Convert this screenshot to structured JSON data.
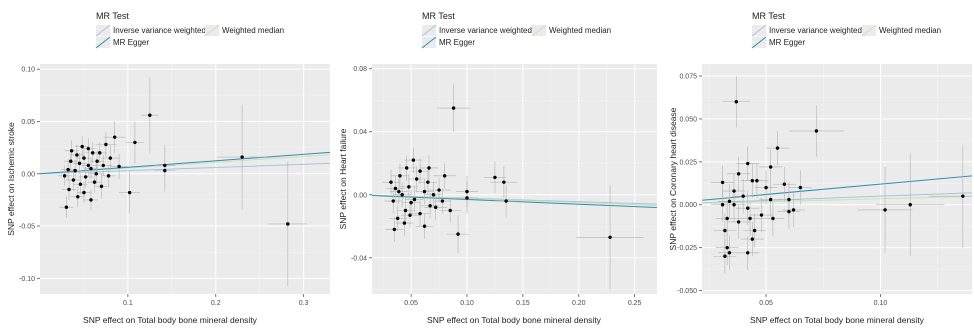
{
  "figure": {
    "legend": {
      "title": "MR Test",
      "items": [
        {
          "label": "Inverse variance weighted",
          "color": "#a6c4e3"
        },
        {
          "label": "Weighted median",
          "color": "#c9e3b8"
        },
        {
          "label": "MR Egger",
          "color": "#2f8fb0"
        }
      ]
    }
  },
  "chart_data": [
    {
      "type": "scatter",
      "title": "",
      "xlabel": "SNP effect on Total body bone mineral density",
      "ylabel": "SNP effect on Ischemic stroke",
      "xlim": [
        0,
        0.33
      ],
      "ylim": [
        -0.115,
        0.105
      ],
      "xticks": [
        0.1,
        0.2,
        0.3
      ],
      "xtick_labels": [
        "0.1",
        "0.2",
        "0.3"
      ],
      "yticks": [
        -0.1,
        -0.05,
        0.0,
        0.05,
        0.1
      ],
      "ytick_labels": [
        "-0.10",
        "-0.05",
        "0.00",
        "0.05",
        "0.10"
      ],
      "grid": true,
      "lines": [
        {
          "name": "Inverse variance weighted",
          "slope": 0.03,
          "intercept": 0,
          "color": "#a6c4e3"
        },
        {
          "name": "Weighted median",
          "slope": 0.055,
          "intercept": 0,
          "color": "#c9e3b8"
        },
        {
          "name": "MR Egger",
          "slope": 0.062,
          "intercept": 0,
          "color": "#2f8fb0"
        }
      ],
      "points": [
        {
          "x": 0.125,
          "y": 0.056,
          "xerr": 0.01,
          "yerr": 0.036
        },
        {
          "x": 0.23,
          "y": 0.016,
          "xerr": 0.028,
          "yerr": 0.05
        },
        {
          "x": 0.282,
          "y": -0.048,
          "xerr": 0.022,
          "yerr": 0.06
        },
        {
          "x": 0.108,
          "y": 0.03,
          "xerr": 0.01,
          "yerr": 0.02
        },
        {
          "x": 0.102,
          "y": -0.018,
          "xerr": 0.012,
          "yerr": 0.02
        },
        {
          "x": 0.142,
          "y": 0.008,
          "xerr": 0.012,
          "yerr": 0.02
        },
        {
          "x": 0.142,
          "y": 0.003,
          "xerr": 0.012,
          "yerr": 0.02
        },
        {
          "x": 0.085,
          "y": 0.035,
          "xerr": 0.012,
          "yerr": 0.015
        },
        {
          "x": 0.075,
          "y": 0.028,
          "xerr": 0.012,
          "yerr": 0.012
        },
        {
          "x": 0.08,
          "y": 0.015,
          "xerr": 0.01,
          "yerr": 0.012
        },
        {
          "x": 0.072,
          "y": 0.008,
          "xerr": 0.01,
          "yerr": 0.01
        },
        {
          "x": 0.09,
          "y": 0.007,
          "xerr": 0.01,
          "yerr": 0.012
        },
        {
          "x": 0.06,
          "y": 0.02,
          "xerr": 0.008,
          "yerr": 0.01
        },
        {
          "x": 0.055,
          "y": 0.024,
          "xerr": 0.008,
          "yerr": 0.01
        },
        {
          "x": 0.048,
          "y": 0.026,
          "xerr": 0.008,
          "yerr": 0.01
        },
        {
          "x": 0.065,
          "y": 0.012,
          "xerr": 0.008,
          "yerr": 0.01
        },
        {
          "x": 0.058,
          "y": 0.005,
          "xerr": 0.008,
          "yerr": 0.01
        },
        {
          "x": 0.052,
          "y": -0.003,
          "xerr": 0.008,
          "yerr": 0.01
        },
        {
          "x": 0.062,
          "y": -0.008,
          "xerr": 0.008,
          "yerr": 0.01
        },
        {
          "x": 0.07,
          "y": -0.012,
          "xerr": 0.008,
          "yerr": 0.012
        },
        {
          "x": 0.045,
          "y": 0.01,
          "xerr": 0.008,
          "yerr": 0.01
        },
        {
          "x": 0.042,
          "y": 0.018,
          "xerr": 0.008,
          "yerr": 0.01
        },
        {
          "x": 0.04,
          "y": 0.003,
          "xerr": 0.008,
          "yerr": 0.01
        },
        {
          "x": 0.038,
          "y": -0.006,
          "xerr": 0.008,
          "yerr": 0.01
        },
        {
          "x": 0.035,
          "y": 0.012,
          "xerr": 0.008,
          "yerr": 0.01
        },
        {
          "x": 0.033,
          "y": -0.015,
          "xerr": 0.008,
          "yerr": 0.01
        },
        {
          "x": 0.03,
          "y": -0.032,
          "xerr": 0.008,
          "yerr": 0.01
        },
        {
          "x": 0.032,
          "y": 0.004,
          "xerr": 0.008,
          "yerr": 0.01
        },
        {
          "x": 0.028,
          "y": -0.002,
          "xerr": 0.008,
          "yerr": 0.01
        },
        {
          "x": 0.05,
          "y": 0.015,
          "xerr": 0.008,
          "yerr": 0.01
        },
        {
          "x": 0.05,
          "y": -0.018,
          "xerr": 0.008,
          "yerr": 0.01
        },
        {
          "x": 0.046,
          "y": -0.01,
          "xerr": 0.008,
          "yerr": 0.01
        },
        {
          "x": 0.055,
          "y": 0.008,
          "xerr": 0.008,
          "yerr": 0.01
        },
        {
          "x": 0.068,
          "y": 0.02,
          "xerr": 0.008,
          "yerr": 0.01
        },
        {
          "x": 0.078,
          "y": -0.002,
          "xerr": 0.008,
          "yerr": 0.01
        },
        {
          "x": 0.043,
          "y": -0.022,
          "xerr": 0.008,
          "yerr": 0.01
        },
        {
          "x": 0.058,
          "y": -0.025,
          "xerr": 0.008,
          "yerr": 0.01
        },
        {
          "x": 0.036,
          "y": 0.022,
          "xerr": 0.008,
          "yerr": 0.01
        },
        {
          "x": 0.064,
          "y": 0.0,
          "xerr": 0.008,
          "yerr": 0.01
        }
      ]
    },
    {
      "type": "scatter",
      "title": "",
      "xlabel": "SNP effect on Total body bone mineral density",
      "ylabel": "SNP effect on Heart failure",
      "xlim": [
        0.015,
        0.27
      ],
      "ylim": [
        -0.063,
        0.083
      ],
      "xticks": [
        0.05,
        0.1,
        0.15,
        0.2,
        0.25
      ],
      "xtick_labels": [
        "0.05",
        "0.10",
        "0.15",
        "0.20",
        "0.25"
      ],
      "yticks": [
        -0.04,
        0.0,
        0.04,
        0.08
      ],
      "ytick_labels": [
        "-0.04",
        "0.00",
        "0.04",
        "0.08"
      ],
      "grid": true,
      "lines": [
        {
          "name": "Inverse variance weighted",
          "slope": -0.022,
          "intercept": 0,
          "color": "#a6c4e3"
        },
        {
          "name": "Weighted median",
          "slope": -0.025,
          "intercept": 0,
          "color": "#c9e3b8"
        },
        {
          "name": "MR Egger",
          "slope": -0.03,
          "intercept": 0,
          "color": "#2f8fb0"
        }
      ],
      "points": [
        {
          "x": 0.088,
          "y": 0.055,
          "xerr": 0.015,
          "yerr": 0.015
        },
        {
          "x": 0.228,
          "y": -0.027,
          "xerr": 0.03,
          "yerr": 0.033
        },
        {
          "x": 0.092,
          "y": -0.025,
          "xerr": 0.01,
          "yerr": 0.012
        },
        {
          "x": 0.125,
          "y": 0.011,
          "xerr": 0.01,
          "yerr": 0.01
        },
        {
          "x": 0.133,
          "y": 0.008,
          "xerr": 0.012,
          "yerr": 0.01
        },
        {
          "x": 0.135,
          "y": -0.004,
          "xerr": 0.01,
          "yerr": 0.01
        },
        {
          "x": 0.1,
          "y": 0.002,
          "xerr": 0.01,
          "yerr": 0.01
        },
        {
          "x": 0.1,
          "y": -0.002,
          "xerr": 0.01,
          "yerr": 0.01
        },
        {
          "x": 0.08,
          "y": 0.012,
          "xerr": 0.01,
          "yerr": 0.008
        },
        {
          "x": 0.075,
          "y": 0.003,
          "xerr": 0.01,
          "yerr": 0.008
        },
        {
          "x": 0.072,
          "y": -0.008,
          "xerr": 0.01,
          "yerr": 0.008
        },
        {
          "x": 0.085,
          "y": -0.01,
          "xerr": 0.01,
          "yerr": 0.008
        },
        {
          "x": 0.065,
          "y": 0.008,
          "xerr": 0.008,
          "yerr": 0.008
        },
        {
          "x": 0.062,
          "y": 0.002,
          "xerr": 0.008,
          "yerr": 0.008
        },
        {
          "x": 0.058,
          "y": 0.015,
          "xerr": 0.008,
          "yerr": 0.008
        },
        {
          "x": 0.052,
          "y": 0.022,
          "xerr": 0.008,
          "yerr": 0.008
        },
        {
          "x": 0.055,
          "y": 0.01,
          "xerr": 0.008,
          "yerr": 0.008
        },
        {
          "x": 0.05,
          "y": -0.005,
          "xerr": 0.008,
          "yerr": 0.008
        },
        {
          "x": 0.048,
          "y": 0.005,
          "xerr": 0.008,
          "yerr": 0.008
        },
        {
          "x": 0.045,
          "y": -0.01,
          "xerr": 0.008,
          "yerr": 0.008
        },
        {
          "x": 0.042,
          "y": 0.0,
          "xerr": 0.008,
          "yerr": 0.008
        },
        {
          "x": 0.04,
          "y": 0.012,
          "xerr": 0.008,
          "yerr": 0.008
        },
        {
          "x": 0.038,
          "y": -0.015,
          "xerr": 0.008,
          "yerr": 0.008
        },
        {
          "x": 0.036,
          "y": 0.004,
          "xerr": 0.008,
          "yerr": 0.008
        },
        {
          "x": 0.034,
          "y": -0.004,
          "xerr": 0.008,
          "yerr": 0.008
        },
        {
          "x": 0.032,
          "y": 0.008,
          "xerr": 0.008,
          "yerr": 0.008
        },
        {
          "x": 0.035,
          "y": -0.022,
          "xerr": 0.008,
          "yerr": 0.008
        },
        {
          "x": 0.044,
          "y": -0.018,
          "xerr": 0.008,
          "yerr": 0.008
        },
        {
          "x": 0.058,
          "y": -0.012,
          "xerr": 0.008,
          "yerr": 0.008
        },
        {
          "x": 0.062,
          "y": -0.02,
          "xerr": 0.008,
          "yerr": 0.008
        },
        {
          "x": 0.066,
          "y": 0.017,
          "xerr": 0.008,
          "yerr": 0.008
        },
        {
          "x": 0.07,
          "y": 0.0,
          "xerr": 0.008,
          "yerr": 0.008
        },
        {
          "x": 0.053,
          "y": -0.003,
          "xerr": 0.008,
          "yerr": 0.008
        },
        {
          "x": 0.046,
          "y": 0.017,
          "xerr": 0.008,
          "yerr": 0.008
        },
        {
          "x": 0.039,
          "y": 0.002,
          "xerr": 0.008,
          "yerr": 0.008
        },
        {
          "x": 0.049,
          "y": -0.013,
          "xerr": 0.008,
          "yerr": 0.008
        },
        {
          "x": 0.078,
          "y": -0.004,
          "xerr": 0.008,
          "yerr": 0.008
        },
        {
          "x": 0.067,
          "y": -0.007,
          "xerr": 0.008,
          "yerr": 0.008
        }
      ]
    },
    {
      "type": "scatter",
      "title": "",
      "xlabel": "SNP effect on Total body bone mineral density",
      "ylabel": "SNP effect on Coronary heart disease",
      "xlim": [
        0.022,
        0.14
      ],
      "ylim": [
        -0.052,
        0.082
      ],
      "xticks": [
        0.05,
        0.1
      ],
      "xtick_labels": [
        "0.05",
        "0.10"
      ],
      "yticks": [
        -0.05,
        -0.025,
        0.0,
        0.025,
        0.05,
        0.075
      ],
      "ytick_labels": [
        "-0.050",
        "-0.025",
        "0.000",
        "0.025",
        "0.050",
        "0.075"
      ],
      "grid": true,
      "lines": [
        {
          "name": "Inverse variance weighted",
          "slope": 0.05,
          "intercept": 0,
          "color": "#a6c4e3"
        },
        {
          "name": "Weighted median",
          "slope": 0.035,
          "intercept": 0,
          "color": "#c9e3b8"
        },
        {
          "name": "MR Egger",
          "slope": 0.12,
          "intercept": 0,
          "color": "#2f8fb0"
        }
      ],
      "points": [
        {
          "x": 0.037,
          "y": 0.06,
          "xerr": 0.006,
          "yerr": 0.015
        },
        {
          "x": 0.072,
          "y": 0.043,
          "xerr": 0.012,
          "yerr": 0.015
        },
        {
          "x": 0.055,
          "y": 0.033,
          "xerr": 0.005,
          "yerr": 0.01
        },
        {
          "x": 0.102,
          "y": -0.003,
          "xerr": 0.012,
          "yerr": 0.025
        },
        {
          "x": 0.113,
          "y": 0.0,
          "xerr": 0.015,
          "yerr": 0.03
        },
        {
          "x": 0.136,
          "y": 0.005,
          "xerr": 0.015,
          "yerr": 0.03
        },
        {
          "x": 0.06,
          "y": 0.003,
          "xerr": 0.005,
          "yerr": 0.01
        },
        {
          "x": 0.06,
          "y": -0.004,
          "xerr": 0.005,
          "yerr": 0.01
        },
        {
          "x": 0.062,
          "y": -0.003,
          "xerr": 0.005,
          "yerr": 0.01
        },
        {
          "x": 0.052,
          "y": 0.022,
          "xerr": 0.005,
          "yerr": 0.01
        },
        {
          "x": 0.05,
          "y": 0.01,
          "xerr": 0.005,
          "yerr": 0.01
        },
        {
          "x": 0.052,
          "y": 0.003,
          "xerr": 0.005,
          "yerr": 0.01
        },
        {
          "x": 0.053,
          "y": -0.008,
          "xerr": 0.005,
          "yerr": 0.01
        },
        {
          "x": 0.046,
          "y": 0.014,
          "xerr": 0.005,
          "yerr": 0.01
        },
        {
          "x": 0.044,
          "y": 0.014,
          "xerr": 0.005,
          "yerr": 0.01
        },
        {
          "x": 0.042,
          "y": 0.024,
          "xerr": 0.005,
          "yerr": 0.01
        },
        {
          "x": 0.042,
          "y": -0.002,
          "xerr": 0.005,
          "yerr": 0.01
        },
        {
          "x": 0.043,
          "y": -0.008,
          "xerr": 0.005,
          "yerr": 0.01
        },
        {
          "x": 0.045,
          "y": -0.015,
          "xerr": 0.005,
          "yerr": 0.01
        },
        {
          "x": 0.044,
          "y": -0.02,
          "xerr": 0.005,
          "yerr": 0.01
        },
        {
          "x": 0.042,
          "y": -0.028,
          "xerr": 0.005,
          "yerr": 0.01
        },
        {
          "x": 0.038,
          "y": 0.018,
          "xerr": 0.005,
          "yerr": 0.01
        },
        {
          "x": 0.036,
          "y": 0.008,
          "xerr": 0.005,
          "yerr": 0.01
        },
        {
          "x": 0.036,
          "y": 0.0,
          "xerr": 0.005,
          "yerr": 0.01
        },
        {
          "x": 0.034,
          "y": 0.002,
          "xerr": 0.005,
          "yerr": 0.01
        },
        {
          "x": 0.033,
          "y": -0.008,
          "xerr": 0.005,
          "yerr": 0.01
        },
        {
          "x": 0.032,
          "y": -0.015,
          "xerr": 0.005,
          "yerr": 0.01
        },
        {
          "x": 0.033,
          "y": -0.025,
          "xerr": 0.005,
          "yerr": 0.01
        },
        {
          "x": 0.034,
          "y": -0.028,
          "xerr": 0.005,
          "yerr": 0.01
        },
        {
          "x": 0.032,
          "y": -0.03,
          "xerr": 0.005,
          "yerr": 0.01
        },
        {
          "x": 0.031,
          "y": 0.013,
          "xerr": 0.005,
          "yerr": 0.01
        },
        {
          "x": 0.031,
          "y": 0.0,
          "xerr": 0.005,
          "yerr": 0.01
        },
        {
          "x": 0.04,
          "y": 0.005,
          "xerr": 0.005,
          "yerr": 0.01
        },
        {
          "x": 0.048,
          "y": -0.006,
          "xerr": 0.005,
          "yerr": 0.01
        },
        {
          "x": 0.065,
          "y": 0.01,
          "xerr": 0.005,
          "yerr": 0.01
        },
        {
          "x": 0.058,
          "y": 0.012,
          "xerr": 0.005,
          "yerr": 0.01
        },
        {
          "x": 0.038,
          "y": -0.01,
          "xerr": 0.005,
          "yerr": 0.01
        }
      ]
    }
  ]
}
